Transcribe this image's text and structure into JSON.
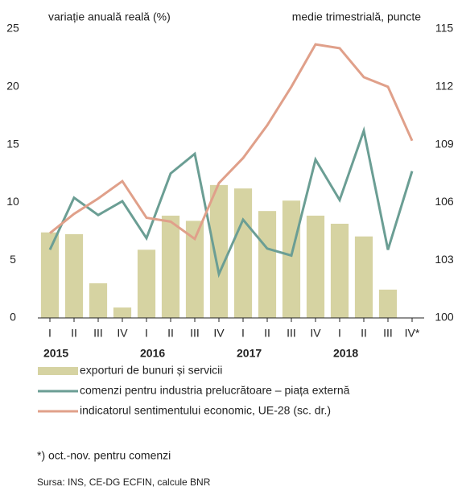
{
  "chart_data": {
    "type": "bar-line",
    "y_label": "variație anuală reală (%)",
    "y2_label": "medie trimestrială,  puncte",
    "categories": [
      "I",
      "II",
      "III",
      "IV",
      "I",
      "II",
      "III",
      "IV",
      "I",
      "II",
      "III",
      "IV",
      "I",
      "II",
      "III",
      "IV*"
    ],
    "year_labels": [
      "2015",
      "2016",
      "2017",
      "2018"
    ],
    "ylim": [
      0,
      25
    ],
    "yticks": [
      0,
      5,
      10,
      15,
      20,
      25
    ],
    "y2lim": [
      100,
      115
    ],
    "y2ticks": [
      100,
      103,
      106,
      109,
      112,
      115
    ],
    "series": [
      {
        "name": "exporturi de bunuri și servicii",
        "type": "bar",
        "color": "#d6d3a2",
        "values": [
          7.4,
          7.25,
          3.0,
          0.9,
          5.9,
          8.85,
          8.4,
          11.5,
          11.2,
          9.25,
          10.15,
          8.85,
          8.15,
          7.05,
          2.45,
          null
        ]
      },
      {
        "name": "comenzi pentru industria prelucrătoare – piața externă",
        "type": "line",
        "color": "#6b9e94",
        "values": [
          5.9,
          10.4,
          8.9,
          10.1,
          6.9,
          12.5,
          14.2,
          3.8,
          8.5,
          6.0,
          5.4,
          13.7,
          10.2,
          16.2,
          5.9,
          12.7
        ]
      },
      {
        "name": "indicatorul sentimentului economic, UE-28 (sc. dr.)",
        "type": "line",
        "axis": "y2",
        "color": "#e0a08a",
        "values": [
          104.4,
          105.4,
          106.2,
          107.1,
          105.2,
          105.0,
          104.1,
          107.0,
          108.3,
          110.0,
          112.0,
          114.2,
          114.0,
          112.5,
          112.0,
          109.2
        ]
      }
    ],
    "note": "*) oct.-nov. pentru comenzi",
    "source": "Sursa: INS, CE-DG ECFIN, calcule BNR"
  }
}
